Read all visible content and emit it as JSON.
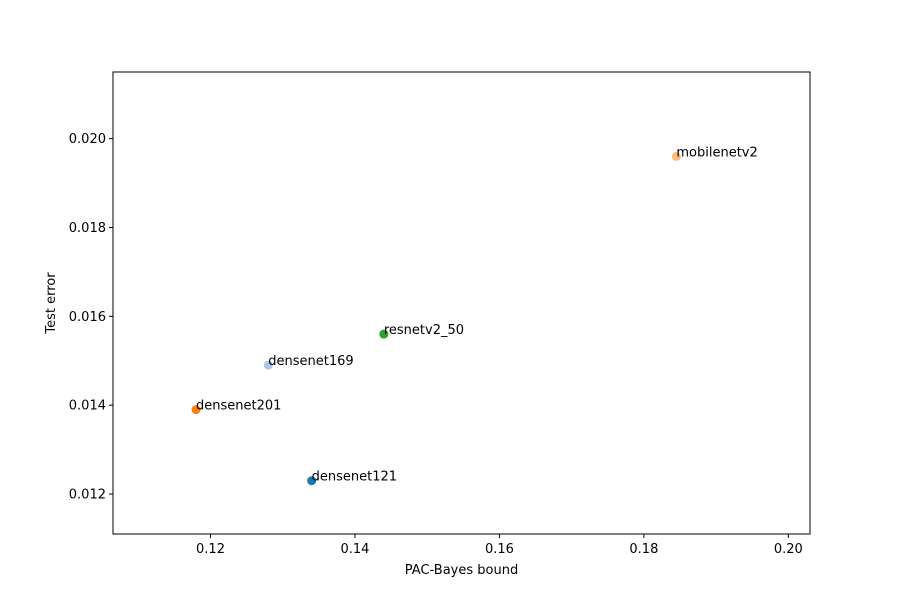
{
  "chart_data": {
    "type": "scatter",
    "xlabel": "PAC-Bayes bound",
    "ylabel": "Test error",
    "xlim": [
      0.1065,
      0.203
    ],
    "ylim": [
      0.0111,
      0.0215
    ],
    "xticks": [
      "0.12",
      "0.14",
      "0.16",
      "0.18",
      "0.20"
    ],
    "yticks": [
      "0.012",
      "0.014",
      "0.016",
      "0.018",
      "0.020"
    ],
    "grid": false,
    "legend": "none",
    "points": [
      {
        "label": "densenet121",
        "x": 0.134,
        "y": 0.0123,
        "color": "#1f77b4"
      },
      {
        "label": "densenet201",
        "x": 0.118,
        "y": 0.0139,
        "color": "#ff7f0e"
      },
      {
        "label": "densenet169",
        "x": 0.128,
        "y": 0.0149,
        "color": "#aec7e8"
      },
      {
        "label": "resnetv2_50",
        "x": 0.144,
        "y": 0.0156,
        "color": "#2ca02c"
      },
      {
        "label": "mobilenetv2",
        "x": 0.1845,
        "y": 0.0196,
        "color": "#ffbb78"
      }
    ]
  }
}
